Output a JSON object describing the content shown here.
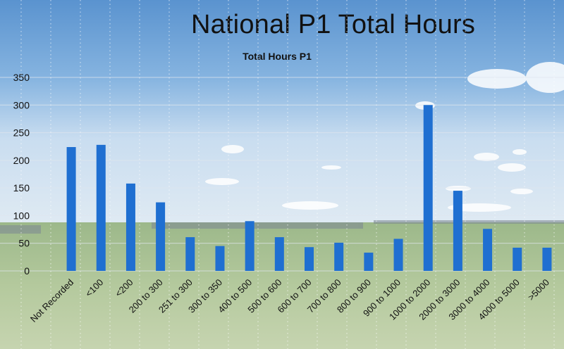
{
  "title": "National P1 Total Hours",
  "chart_data": {
    "type": "bar",
    "title": "Total Hours P1",
    "xlabel": "",
    "ylabel": "",
    "ylim": [
      0,
      350
    ],
    "yticks": [
      0,
      50,
      100,
      150,
      200,
      250,
      300,
      350
    ],
    "grid": true,
    "legend": "none",
    "bar_color": "#1f6fd1",
    "categories": [
      "Not Recorded",
      "<100",
      "<200",
      "200 to 300",
      "251 to 300",
      "300 to 350",
      "400 to 500",
      "500 to 600",
      "600 to 700",
      "700 to 800",
      "800 to 900",
      "900 to 1000",
      "1000 to 2000",
      "2000 to 3000",
      "3000 to 4000",
      "4000 to 5000",
      ">5000"
    ],
    "values": [
      224,
      228,
      158,
      124,
      61,
      45,
      90,
      61,
      43,
      51,
      33,
      58,
      300,
      145,
      76,
      42,
      42
    ]
  }
}
